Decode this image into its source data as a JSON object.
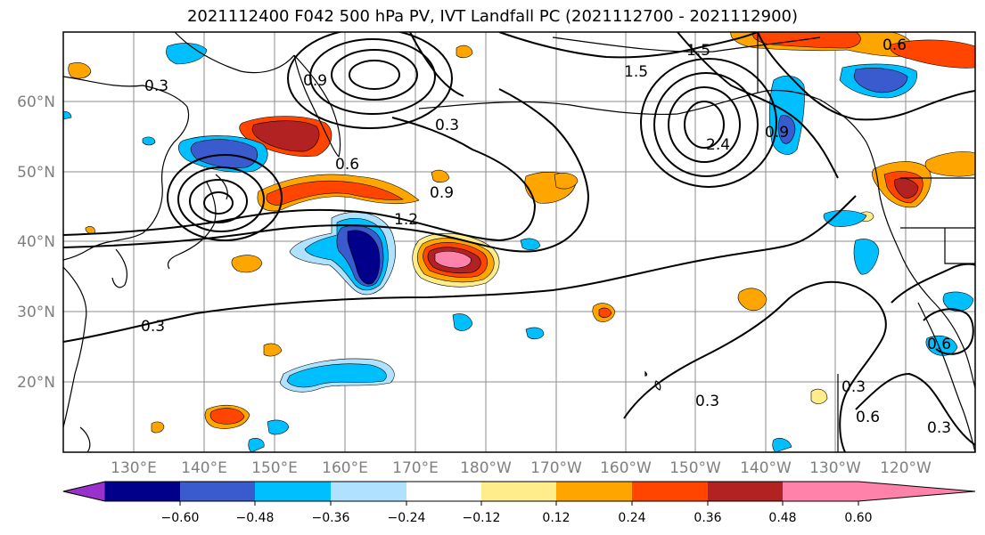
{
  "title": "2021112400 F042 500 hPa PV, IVT Landfall PC (2021112700 - 2021112900)",
  "lat_labels": [
    "60°N",
    "50°N",
    "40°N",
    "30°N",
    "20°N"
  ],
  "lon_labels": [
    "130°E",
    "140°E",
    "150°E",
    "160°E",
    "170°E",
    "180°W",
    "170°W",
    "160°W",
    "150°W",
    "140°W",
    "130°W",
    "120°W"
  ],
  "colorbar": {
    "ticks": [
      "−0.60",
      "−0.48",
      "−0.36",
      "−0.24",
      "−0.12",
      "0.12",
      "0.24",
      "0.36",
      "0.48",
      "0.60"
    ],
    "colors": [
      "#9932cc",
      "#00008b",
      "#3a5bcd",
      "#00bfff",
      "#b0e2ff",
      "#ffffff",
      "#ffec8b",
      "#ffa500",
      "#ff4500",
      "#b22222",
      "#ff82ab"
    ]
  },
  "contour_labels": [
    "1.5",
    "0.3",
    "0.9",
    "0.3",
    "1.5",
    "2.4",
    "0.9",
    "0.6",
    "0.6",
    "0.9",
    "1.2",
    "0.3",
    "0.3",
    "0.3",
    "0.6",
    "0.3",
    "0.6"
  ]
}
